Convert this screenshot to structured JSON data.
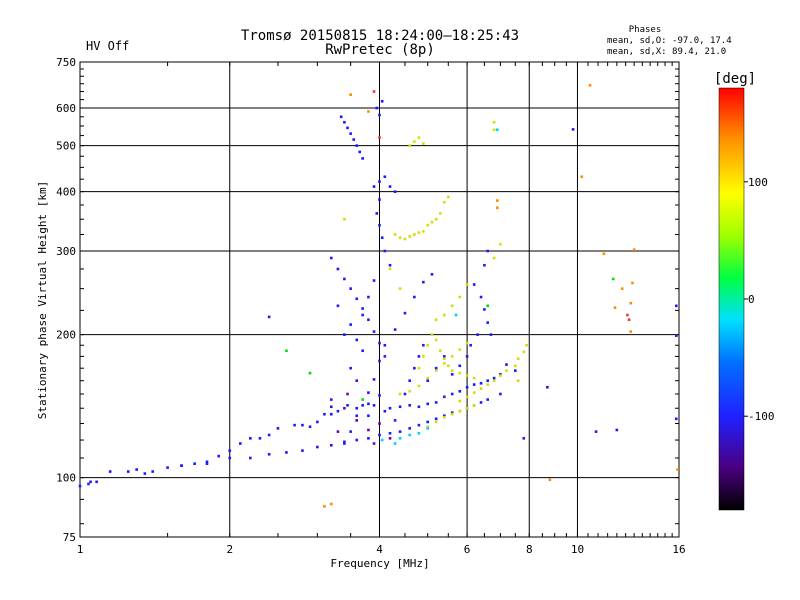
{
  "header": {
    "title_line1": "Tromsø 20150815 18:24:00–18:25:43",
    "title_line2": "RwPretec (8p)",
    "status": "HV Off",
    "status_color": "#cc0000",
    "phase_heading": "Phases",
    "phase_o": "mean, sd,O: -97.0, 17.4",
    "phase_x": "mean, sd,X:  89.4, 21.0"
  },
  "chart_data": {
    "type": "scatter",
    "title": "Tromsø 20150815 18:24:00–18:25:43",
    "subtitle": "RwPretec (8p)",
    "xlabel": "Frequency [MHz]",
    "ylabel": "Stationary phase Virtual Height [km]",
    "x_scale": "log",
    "y_scale": "log",
    "xlim": [
      1,
      16
    ],
    "ylim": [
      75,
      750
    ],
    "grid": true,
    "x_ticks": [
      1,
      2,
      4,
      6,
      8,
      10,
      16
    ],
    "x_tick_labels": [
      "1",
      "2",
      "4",
      "6",
      "8",
      "10",
      "16"
    ],
    "y_ticks": [
      75,
      100,
      200,
      300,
      400,
      500,
      600,
      750
    ],
    "y_tick_labels": [
      "75",
      "100",
      "200",
      "300",
      "400",
      "500",
      "600",
      "750"
    ],
    "colorbar": {
      "label": "[deg]",
      "range": [
        -180,
        180
      ],
      "ticks": [
        100,
        0,
        -100
      ],
      "tick_labels": [
        "100",
        "0",
        "-100"
      ]
    },
    "series": [
      {
        "color": "#1a1aff",
        "points": [
          [
            1.0,
            96
          ],
          [
            1.04,
            97
          ],
          [
            1.08,
            98
          ],
          [
            1.15,
            103
          ],
          [
            1.25,
            103
          ],
          [
            1.3,
            104
          ],
          [
            1.35,
            102
          ],
          [
            1.4,
            103
          ],
          [
            1.5,
            105
          ],
          [
            1.6,
            106
          ],
          [
            1.7,
            107
          ],
          [
            1.8,
            108
          ],
          [
            1.9,
            111
          ],
          [
            2.0,
            114
          ],
          [
            2.1,
            118
          ],
          [
            2.2,
            121
          ],
          [
            2.3,
            121
          ],
          [
            2.4,
            123
          ],
          [
            2.5,
            127
          ],
          [
            2.7,
            129
          ],
          [
            2.8,
            129
          ],
          [
            2.9,
            128
          ],
          [
            3.0,
            131
          ],
          [
            3.1,
            136
          ],
          [
            3.2,
            141
          ],
          [
            3.3,
            138
          ],
          [
            3.45,
            142
          ],
          [
            3.6,
            140
          ],
          [
            3.8,
            143
          ],
          [
            3.9,
            142
          ],
          [
            4.0,
            149
          ],
          [
            4.1,
            138
          ],
          [
            4.2,
            140
          ],
          [
            4.3,
            132
          ],
          [
            4.4,
            141
          ],
          [
            4.6,
            142
          ],
          [
            4.8,
            141
          ],
          [
            5.0,
            143
          ],
          [
            5.2,
            144
          ],
          [
            5.4,
            148
          ],
          [
            5.6,
            150
          ],
          [
            5.8,
            152
          ],
          [
            6.0,
            155
          ],
          [
            6.2,
            157
          ],
          [
            6.4,
            158
          ],
          [
            6.6,
            160
          ],
          [
            6.8,
            162
          ],
          [
            7.0,
            165
          ],
          [
            1.6,
            106
          ],
          [
            1.8,
            107
          ],
          [
            2.0,
            110
          ],
          [
            2.2,
            110
          ],
          [
            2.4,
            112
          ],
          [
            2.6,
            113
          ],
          [
            2.8,
            114
          ],
          [
            3.0,
            116
          ],
          [
            3.2,
            117
          ],
          [
            3.4,
            119
          ],
          [
            3.6,
            120
          ],
          [
            3.8,
            121
          ],
          [
            4.0,
            123
          ],
          [
            4.2,
            124
          ],
          [
            4.4,
            125
          ],
          [
            4.6,
            127
          ],
          [
            4.8,
            129
          ],
          [
            5.0,
            131
          ],
          [
            5.2,
            133
          ],
          [
            5.4,
            135
          ],
          [
            5.6,
            137
          ],
          [
            5.8,
            138
          ],
          [
            6.0,
            140
          ],
          [
            6.2,
            142
          ],
          [
            6.4,
            144
          ],
          [
            6.6,
            146
          ],
          [
            3.4,
            118
          ],
          [
            3.5,
            125
          ],
          [
            3.6,
            135
          ],
          [
            3.7,
            142
          ],
          [
            3.8,
            151
          ],
          [
            3.9,
            161
          ],
          [
            4.0,
            176
          ],
          [
            4.1,
            190
          ],
          [
            4.3,
            205
          ],
          [
            4.5,
            222
          ],
          [
            4.7,
            240
          ],
          [
            4.9,
            258
          ],
          [
            5.1,
            268
          ],
          [
            3.2,
            290
          ],
          [
            3.3,
            275
          ],
          [
            3.4,
            262
          ],
          [
            3.5,
            250
          ],
          [
            3.6,
            238
          ],
          [
            3.7,
            227
          ],
          [
            3.8,
            215
          ],
          [
            3.9,
            203
          ],
          [
            4.0,
            192
          ],
          [
            4.1,
            180
          ],
          [
            3.35,
            575
          ],
          [
            3.4,
            560
          ],
          [
            3.45,
            545
          ],
          [
            3.5,
            530
          ],
          [
            3.55,
            515
          ],
          [
            3.6,
            500
          ],
          [
            3.65,
            485
          ],
          [
            3.7,
            470
          ],
          [
            3.95,
            600
          ],
          [
            4.0,
            580
          ],
          [
            4.05,
            620
          ],
          [
            3.9,
            410
          ],
          [
            4.0,
            420
          ],
          [
            4.1,
            430
          ],
          [
            4.2,
            410
          ],
          [
            4.3,
            400
          ],
          [
            4.0,
            385
          ],
          [
            3.95,
            360
          ],
          [
            4.0,
            340
          ],
          [
            4.05,
            320
          ],
          [
            4.1,
            300
          ],
          [
            4.2,
            280
          ],
          [
            3.9,
            260
          ],
          [
            3.8,
            240
          ],
          [
            3.7,
            220
          ],
          [
            3.4,
            200
          ],
          [
            3.5,
            210
          ],
          [
            3.6,
            195
          ],
          [
            3.7,
            185
          ],
          [
            3.3,
            230
          ],
          [
            3.5,
            170
          ],
          [
            3.6,
            160
          ],
          [
            6.2,
            255
          ],
          [
            6.4,
            240
          ],
          [
            6.5,
            226
          ],
          [
            6.6,
            212
          ],
          [
            6.7,
            200
          ],
          [
            6.5,
            280
          ],
          [
            6.6,
            300
          ],
          [
            7.2,
            173
          ],
          [
            7.5,
            168
          ],
          [
            7.0,
            150
          ],
          [
            1.05,
            98
          ],
          [
            2.4,
            218
          ],
          [
            3.2,
            136
          ],
          [
            3.2,
            146
          ],
          [
            3.8,
            135
          ],
          [
            4.5,
            150
          ],
          [
            4.6,
            160
          ],
          [
            4.7,
            170
          ],
          [
            4.8,
            180
          ],
          [
            4.9,
            190
          ],
          [
            5.0,
            160
          ],
          [
            5.2,
            170
          ],
          [
            5.4,
            180
          ],
          [
            5.6,
            165
          ],
          [
            5.8,
            172
          ],
          [
            6.0,
            180
          ],
          [
            6.1,
            190
          ],
          [
            6.3,
            200
          ],
          [
            7.8,
            121
          ],
          [
            9.8,
            541
          ],
          [
            15.8,
            230
          ],
          [
            15.8,
            199
          ],
          [
            15.8,
            133
          ],
          [
            12.0,
            126
          ],
          [
            10.9,
            125
          ],
          [
            8.7,
            155
          ]
        ]
      },
      {
        "color": "#d7dd00",
        "points": [
          [
            4.3,
            325
          ],
          [
            4.4,
            320
          ],
          [
            4.5,
            318
          ],
          [
            4.6,
            322
          ],
          [
            4.7,
            325
          ],
          [
            4.8,
            328
          ],
          [
            4.9,
            330
          ],
          [
            5.0,
            340
          ],
          [
            5.1,
            345
          ],
          [
            5.2,
            350
          ],
          [
            5.3,
            360
          ],
          [
            5.4,
            380
          ],
          [
            5.5,
            390
          ],
          [
            4.6,
            500
          ],
          [
            4.7,
            510
          ],
          [
            4.8,
            520
          ],
          [
            4.9,
            505
          ],
          [
            5.8,
            145
          ],
          [
            6.0,
            148
          ],
          [
            6.2,
            151
          ],
          [
            6.4,
            154
          ],
          [
            6.6,
            157
          ],
          [
            6.8,
            160
          ],
          [
            7.0,
            164
          ],
          [
            7.2,
            168
          ],
          [
            7.5,
            172
          ],
          [
            7.6,
            178
          ],
          [
            7.8,
            184
          ],
          [
            7.9,
            190
          ],
          [
            7.6,
            160
          ],
          [
            4.8,
            170
          ],
          [
            4.9,
            180
          ],
          [
            5.0,
            190
          ],
          [
            5.1,
            200
          ],
          [
            5.2,
            195
          ],
          [
            5.3,
            185
          ],
          [
            5.4,
            178
          ],
          [
            5.5,
            172
          ],
          [
            5.6,
            168
          ],
          [
            5.8,
            166
          ],
          [
            6.0,
            164
          ],
          [
            6.2,
            162
          ],
          [
            5.4,
            220
          ],
          [
            5.6,
            230
          ],
          [
            5.8,
            240
          ],
          [
            6.0,
            255
          ],
          [
            5.2,
            215
          ],
          [
            4.4,
            150
          ],
          [
            4.6,
            152
          ],
          [
            4.8,
            156
          ],
          [
            5.0,
            162
          ],
          [
            5.2,
            168
          ],
          [
            5.4,
            174
          ],
          [
            5.6,
            180
          ],
          [
            5.8,
            186
          ],
          [
            6.0,
            192
          ],
          [
            5.0,
            128
          ],
          [
            5.2,
            131
          ],
          [
            5.4,
            134
          ],
          [
            5.6,
            136
          ],
          [
            5.8,
            138
          ],
          [
            6.0,
            140
          ],
          [
            6.2,
            142
          ],
          [
            6.8,
            290
          ],
          [
            7.0,
            310
          ],
          [
            6.8,
            560
          ],
          [
            6.8,
            540
          ],
          [
            3.4,
            350
          ],
          [
            4.4,
            250
          ],
          [
            4.2,
            275
          ]
        ]
      },
      {
        "color": "#ff8a00",
        "points": [
          [
            3.1,
            87
          ],
          [
            3.2,
            88
          ],
          [
            3.5,
            640
          ],
          [
            3.8,
            590
          ],
          [
            6.9,
            383
          ],
          [
            6.9,
            370
          ],
          [
            8.8,
            99
          ],
          [
            10.6,
            670
          ],
          [
            10.2,
            430
          ],
          [
            11.3,
            296
          ],
          [
            13.0,
            302
          ],
          [
            15.9,
            104
          ],
          [
            12.8,
            203
          ],
          [
            12.8,
            233
          ],
          [
            12.9,
            257
          ],
          [
            12.3,
            250
          ],
          [
            11.9,
            228
          ]
        ]
      },
      {
        "color": "#00cfff",
        "points": [
          [
            4.05,
            120
          ],
          [
            4.3,
            118
          ],
          [
            4.4,
            121
          ],
          [
            4.6,
            123
          ],
          [
            4.8,
            124
          ],
          [
            5.0,
            127
          ],
          [
            6.9,
            540
          ],
          [
            5.7,
            220
          ]
        ]
      },
      {
        "color": "#6f00aa",
        "points": [
          [
            3.45,
            150
          ],
          [
            3.4,
            140
          ],
          [
            3.6,
            132
          ],
          [
            3.8,
            126
          ],
          [
            4.0,
            130
          ],
          [
            4.2,
            121
          ],
          [
            3.3,
            125
          ],
          [
            3.9,
            118
          ]
        ]
      },
      {
        "color": "#00dd00",
        "points": [
          [
            2.9,
            166
          ],
          [
            2.6,
            185
          ],
          [
            3.7,
            146
          ],
          [
            6.6,
            230
          ],
          [
            11.8,
            262
          ]
        ]
      },
      {
        "color": "#ff3030",
        "points": [
          [
            3.9,
            650
          ],
          [
            4.0,
            520
          ],
          [
            12.7,
            215
          ],
          [
            12.6,
            220
          ]
        ]
      }
    ]
  }
}
